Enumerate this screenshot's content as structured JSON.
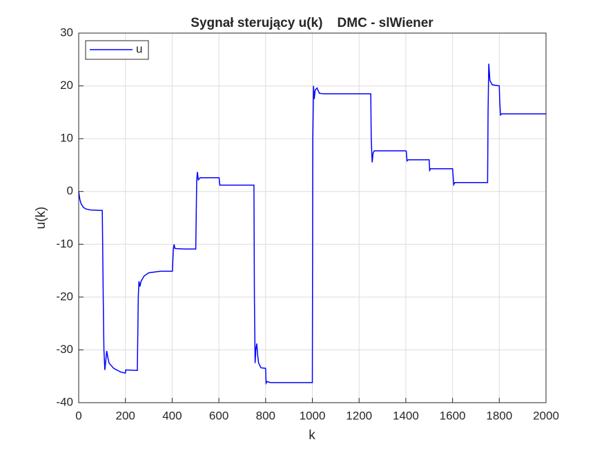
{
  "chart_data": {
    "type": "line",
    "title": "Sygnał sterujący u(k)    DMC - slWiener",
    "x_label": "k",
    "y_label": "u(k)",
    "x": [
      0,
      5,
      10,
      20,
      30,
      50,
      100,
      101,
      105,
      108,
      112,
      116,
      120,
      125,
      130,
      150,
      180,
      200,
      201,
      250,
      251,
      255,
      258,
      262,
      267,
      280,
      300,
      350,
      400,
      401,
      405,
      408,
      412,
      450,
      500,
      501,
      505,
      508,
      512,
      520,
      600,
      601,
      604,
      700,
      750,
      752,
      755,
      758,
      762,
      766,
      770,
      780,
      800,
      802,
      806,
      820,
      1000,
      1002,
      1005,
      1008,
      1012,
      1020,
      1030,
      1050,
      1250,
      1252,
      1256,
      1260,
      1265,
      1400,
      1402,
      1405,
      1410,
      1500,
      1502,
      1506,
      1600,
      1605,
      1610,
      1750,
      1752,
      1755,
      1760,
      1770,
      1800,
      1802,
      1805,
      1810,
      2000
    ],
    "series": [
      {
        "name": "u",
        "color": "#0000ff",
        "values": [
          0,
          -1.5,
          -2.3,
          -3.0,
          -3.3,
          -3.5,
          -3.6,
          -3.6,
          -20,
          -30,
          -33.8,
          -32,
          -30.2,
          -31.5,
          -32.5,
          -33.5,
          -34.2,
          -34.4,
          -33.8,
          -33.9,
          -33.9,
          -20,
          -17,
          -18,
          -17,
          -16,
          -15.4,
          -15.1,
          -15.1,
          -15.1,
          -11,
          -10,
          -10.8,
          -10.9,
          -10.9,
          -10.9,
          2,
          3.7,
          2.2,
          2.6,
          2.6,
          2.6,
          1.2,
          1.2,
          1.2,
          -20,
          -32.5,
          -30,
          -28.8,
          -31,
          -32.5,
          -33.4,
          -33.5,
          -36.3,
          -36,
          -36.2,
          -36.2,
          10,
          20,
          17.5,
          19.2,
          19.6,
          18.6,
          18.5,
          18.5,
          10,
          5.5,
          7.3,
          7.7,
          7.7,
          7.6,
          5.8,
          6.0,
          6.0,
          4,
          4.3,
          4.3,
          1.3,
          1.7,
          1.7,
          15,
          24.2,
          21,
          20.2,
          20.0,
          17,
          14.5,
          14.7,
          14.7
        ]
      }
    ],
    "xlim": [
      0,
      2000
    ],
    "xticks": [
      0,
      200,
      400,
      600,
      800,
      1000,
      1200,
      1400,
      1600,
      1800,
      2000
    ],
    "ylim": [
      -40,
      30
    ],
    "yticks": [
      -40,
      -30,
      -20,
      -10,
      0,
      10,
      20,
      30
    ],
    "grid": true,
    "legend": "top-left"
  }
}
